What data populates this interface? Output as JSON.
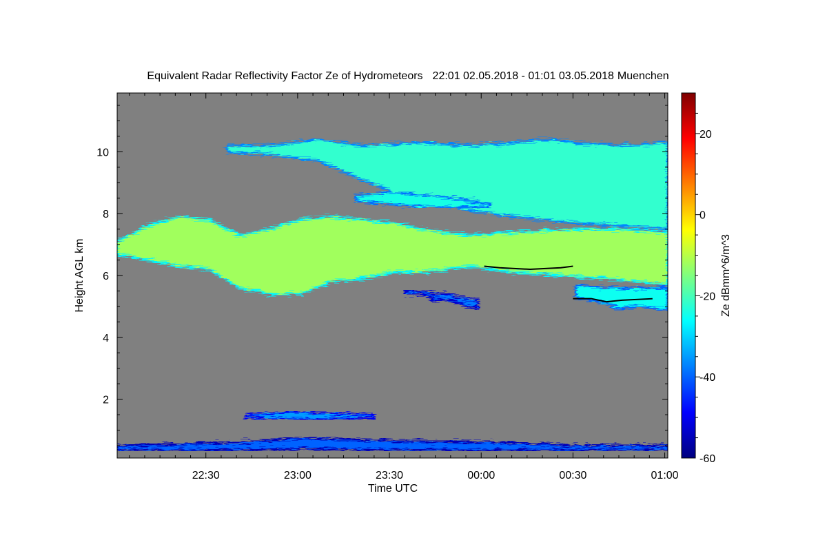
{
  "chart_data": {
    "type": "heatmap",
    "title": "Equivalent Radar Reflectivity Factor Ze of Hydrometeors",
    "period": "22:01 02.05.2018 - 01:01 03.05.2018",
    "location": "Muenchen",
    "xlabel": "Time UTC",
    "ylabel": "Height AGL km",
    "colorbar_label": "Ze dBmm^6/m^3",
    "x_range": [
      "22:01",
      "01:01"
    ],
    "x_range_minutes": [
      0,
      180
    ],
    "x_ticks": [
      {
        "label": "22:30",
        "minute": 29
      },
      {
        "label": "23:00",
        "minute": 59
      },
      {
        "label": "23:30",
        "minute": 89
      },
      {
        "label": "00:00",
        "minute": 119
      },
      {
        "label": "00:30",
        "minute": 149
      },
      {
        "label": "01:00",
        "minute": 179
      }
    ],
    "ylim": [
      0.1,
      11.9
    ],
    "y_ticks": [
      2,
      4,
      6,
      8,
      10
    ],
    "colorbar_range": [
      -60,
      30
    ],
    "colorbar_ticks": [
      -60,
      -40,
      -20,
      0,
      20
    ],
    "background_color": "#808080",
    "colormap": [
      "#00007f",
      "#0000ff",
      "#007fff",
      "#00ffff",
      "#7fff7f",
      "#ffff00",
      "#ff7f00",
      "#ff0000",
      "#7f0000"
    ],
    "echo_layers": [
      {
        "name": "upper-cirrus",
        "ze_dbz": -22,
        "top": [
          [
            36,
            10.2
          ],
          [
            50,
            10.2
          ],
          [
            66,
            10.4
          ],
          [
            80,
            10.2
          ],
          [
            100,
            10.3
          ],
          [
            115,
            10.2
          ],
          [
            130,
            10.3
          ],
          [
            140,
            10.4
          ],
          [
            150,
            10.3
          ],
          [
            165,
            10.2
          ],
          [
            180,
            10.3
          ]
        ],
        "bottom": [
          [
            36,
            10.0
          ],
          [
            50,
            9.9
          ],
          [
            66,
            9.7
          ],
          [
            80,
            9.1
          ],
          [
            90,
            8.7
          ],
          [
            100,
            8.4
          ],
          [
            115,
            8.1
          ],
          [
            130,
            7.9
          ],
          [
            150,
            7.7
          ],
          [
            165,
            7.6
          ],
          [
            180,
            7.5
          ]
        ]
      },
      {
        "name": "mid-secondary",
        "ze_dbz": -24,
        "top": [
          [
            78,
            8.6
          ],
          [
            90,
            8.7
          ],
          [
            100,
            8.6
          ],
          [
            110,
            8.5
          ],
          [
            122,
            8.3
          ]
        ],
        "bottom": [
          [
            78,
            8.4
          ],
          [
            90,
            8.3
          ],
          [
            100,
            8.2
          ],
          [
            110,
            8.2
          ],
          [
            122,
            8.2
          ]
        ]
      },
      {
        "name": "main-layer",
        "ze_dbz": -12,
        "top": [
          [
            0,
            7.1
          ],
          [
            10,
            7.6
          ],
          [
            20,
            7.9
          ],
          [
            30,
            7.8
          ],
          [
            40,
            7.3
          ],
          [
            50,
            7.5
          ],
          [
            60,
            7.8
          ],
          [
            70,
            7.9
          ],
          [
            80,
            7.8
          ],
          [
            90,
            7.7
          ],
          [
            100,
            7.5
          ],
          [
            115,
            7.3
          ],
          [
            130,
            7.4
          ],
          [
            150,
            7.5
          ],
          [
            165,
            7.5
          ],
          [
            180,
            7.4
          ]
        ],
        "bottom": [
          [
            0,
            6.7
          ],
          [
            10,
            6.5
          ],
          [
            20,
            6.3
          ],
          [
            30,
            6.2
          ],
          [
            40,
            5.6
          ],
          [
            50,
            5.4
          ],
          [
            60,
            5.4
          ],
          [
            70,
            5.8
          ],
          [
            80,
            5.9
          ],
          [
            90,
            6.1
          ],
          [
            100,
            6.1
          ],
          [
            115,
            6.3
          ],
          [
            130,
            6.1
          ],
          [
            145,
            6.0
          ],
          [
            160,
            5.9
          ],
          [
            170,
            5.8
          ],
          [
            180,
            5.7
          ]
        ]
      },
      {
        "name": "lower-patch",
        "ze_dbz": -25,
        "top": [
          [
            150,
            5.7
          ],
          [
            160,
            5.6
          ],
          [
            170,
            5.6
          ],
          [
            180,
            5.6
          ]
        ],
        "bottom": [
          [
            150,
            5.3
          ],
          [
            160,
            5.1
          ],
          [
            165,
            4.9
          ],
          [
            170,
            5.0
          ],
          [
            180,
            4.9
          ]
        ]
      },
      {
        "name": "isolated-echoes",
        "ze_dbz": -38,
        "top": [
          [
            94,
            5.5
          ],
          [
            100,
            5.5
          ],
          [
            104,
            5.4
          ],
          [
            108,
            5.4
          ],
          [
            112,
            5.3
          ],
          [
            118,
            5.2
          ]
        ],
        "bottom": [
          [
            94,
            5.4
          ],
          [
            100,
            5.4
          ],
          [
            104,
            5.2
          ],
          [
            108,
            5.2
          ],
          [
            112,
            5.1
          ],
          [
            118,
            4.9
          ]
        ]
      },
      {
        "name": "low-level-layer",
        "ze_dbz": -35,
        "top": [
          [
            42,
            1.5
          ],
          [
            55,
            1.6
          ],
          [
            70,
            1.55
          ],
          [
            84,
            1.5
          ]
        ],
        "bottom": [
          [
            42,
            1.4
          ],
          [
            55,
            1.35
          ],
          [
            70,
            1.35
          ],
          [
            84,
            1.4
          ]
        ]
      },
      {
        "name": "ground-clutter",
        "ze_dbz": -40,
        "top": [
          [
            0,
            0.5
          ],
          [
            40,
            0.6
          ],
          [
            60,
            0.75
          ],
          [
            90,
            0.65
          ],
          [
            125,
            0.6
          ],
          [
            150,
            0.5
          ],
          [
            180,
            0.5
          ]
        ],
        "bottom": [
          [
            0,
            0.35
          ],
          [
            40,
            0.35
          ],
          [
            60,
            0.4
          ],
          [
            90,
            0.35
          ],
          [
            125,
            0.35
          ],
          [
            150,
            0.35
          ],
          [
            180,
            0.35
          ]
        ]
      }
    ],
    "melting_layer": [
      [
        [
          120,
          6.3
        ],
        [
          125,
          6.25
        ],
        [
          135,
          6.2
        ],
        [
          145,
          6.25
        ],
        [
          149,
          6.3
        ]
      ],
      [
        [
          149,
          5.25
        ],
        [
          155,
          5.25
        ],
        [
          160,
          5.15
        ],
        [
          165,
          5.2
        ],
        [
          175,
          5.25
        ]
      ]
    ]
  }
}
